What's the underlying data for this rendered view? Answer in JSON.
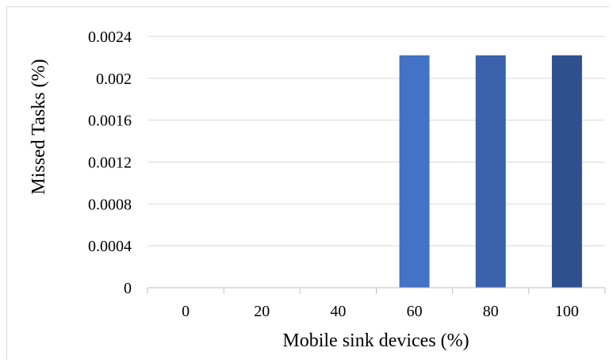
{
  "chart_data": {
    "type": "bar",
    "xlabel": "Mobile sink devices (%)",
    "ylabel": "Missed Tasks (%)",
    "categories": [
      "0",
      "20",
      "40",
      "60",
      "80",
      "100"
    ],
    "values": [
      0,
      0,
      0,
      0.00222,
      0.00222,
      0.00222
    ],
    "ylim": [
      0,
      0.0024
    ],
    "yticks": [
      "0",
      "0.0004",
      "0.0008",
      "0.0012",
      "0.0016",
      "0.002",
      "0.0024"
    ],
    "grid": true,
    "bar_colors": [
      "#4472c4",
      "#4472c4",
      "#4472c4",
      "#4472c4",
      "#3a62ac",
      "#2f528f"
    ]
  }
}
